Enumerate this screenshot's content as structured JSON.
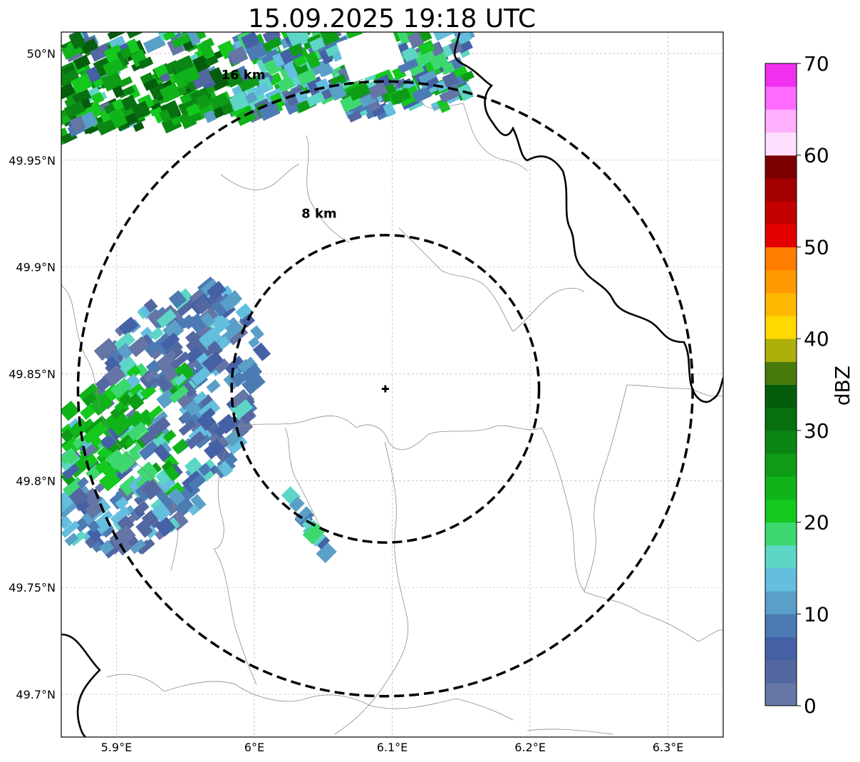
{
  "title": "15.09.2025 19:18 UTC",
  "map": {
    "lon_range": [
      5.86,
      6.34
    ],
    "lat_range": [
      49.68,
      50.01
    ],
    "x_ticks": [
      {
        "value": 5.9,
        "label": "5.9°E"
      },
      {
        "value": 6.0,
        "label": "6°E"
      },
      {
        "value": 6.1,
        "label": "6.1°E"
      },
      {
        "value": 6.2,
        "label": "6.2°E"
      },
      {
        "value": 6.3,
        "label": "6.3°E"
      }
    ],
    "y_ticks": [
      {
        "value": 50.0,
        "label": "50°N"
      },
      {
        "value": 49.95,
        "label": "49.95°N"
      },
      {
        "value": 49.9,
        "label": "49.9°N"
      },
      {
        "value": 49.85,
        "label": "49.85°N"
      },
      {
        "value": 49.8,
        "label": "49.8°N"
      },
      {
        "value": 49.75,
        "label": "49.75°N"
      },
      {
        "value": 49.7,
        "label": "49.7°N"
      }
    ],
    "grid": true,
    "radar_site": {
      "lon": 6.095,
      "lat": 49.843
    },
    "range_rings": [
      {
        "label": "8 km",
        "radius_km": 8,
        "label_lon": 6.047,
        "label_lat": 49.923
      },
      {
        "label": "16 km",
        "radius_km": 16,
        "label_lon": 5.992,
        "label_lat": 49.988
      }
    ]
  },
  "colorbar": {
    "label": "dBZ",
    "min": 0,
    "max": 70,
    "ticks": [
      0,
      10,
      20,
      30,
      40,
      50,
      60,
      70
    ],
    "tick_labels": [
      "0",
      "10",
      "20",
      "30",
      "40",
      "50",
      "60",
      "70"
    ],
    "colors": [
      "#6475a6",
      "#5367a0",
      "#4561a6",
      "#4b7bb2",
      "#5a9fc8",
      "#64bede",
      "#5dd6c6",
      "#3ed870",
      "#14c81d",
      "#10b31a",
      "#0e9c17",
      "#0b8514",
      "#086f11",
      "#055c0d",
      "#477a0b",
      "#abb00a",
      "#ffd900",
      "#ffb800",
      "#ff9a00",
      "#ff7e00",
      "#e50000",
      "#c40000",
      "#a30000",
      "#7a0000",
      "#ffdfff",
      "#ffb0ff",
      "#ff6bff",
      "#f130ef"
    ]
  }
}
